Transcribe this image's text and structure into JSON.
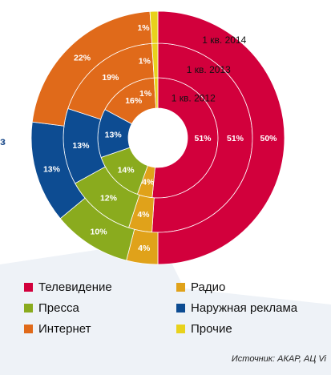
{
  "chart_data": {
    "type": "pie",
    "rings": [
      {
        "name": "1 кв. 2012",
        "values": {
          "tv": 51,
          "radio": 4,
          "press": 14,
          "outdoor": 13,
          "internet": 16,
          "other": 1
        }
      },
      {
        "name": "1 кв. 2013",
        "values": {
          "tv": 51,
          "radio": 4,
          "press": 12,
          "outdoor": 13,
          "internet": 19,
          "other": 1
        }
      },
      {
        "name": "1 кв. 2014",
        "values": {
          "tv": 50,
          "radio": 4,
          "press": 10,
          "outdoor": 13,
          "internet": 22,
          "other": 1
        }
      }
    ],
    "categories": [
      {
        "key": "tv",
        "label": "Телевидение",
        "color": "#d2003c"
      },
      {
        "key": "radio",
        "label": "Радио",
        "color": "#e0a21a"
      },
      {
        "key": "press",
        "label": "Пресса",
        "color": "#8aab1e"
      },
      {
        "key": "outdoor",
        "label": "Наружная реклама",
        "color": "#0d4c92"
      },
      {
        "key": "internet",
        "label": "Интернет",
        "color": "#e06a1a"
      },
      {
        "key": "other",
        "label": "Прочие",
        "color": "#e8d21c"
      }
    ],
    "slice_order": [
      "tv",
      "radio",
      "press",
      "outdoor",
      "internet",
      "other"
    ],
    "legend_placement": "bottom"
  },
  "source": "Источник: АКАР, АЦ Vi",
  "edge_mark": "з"
}
